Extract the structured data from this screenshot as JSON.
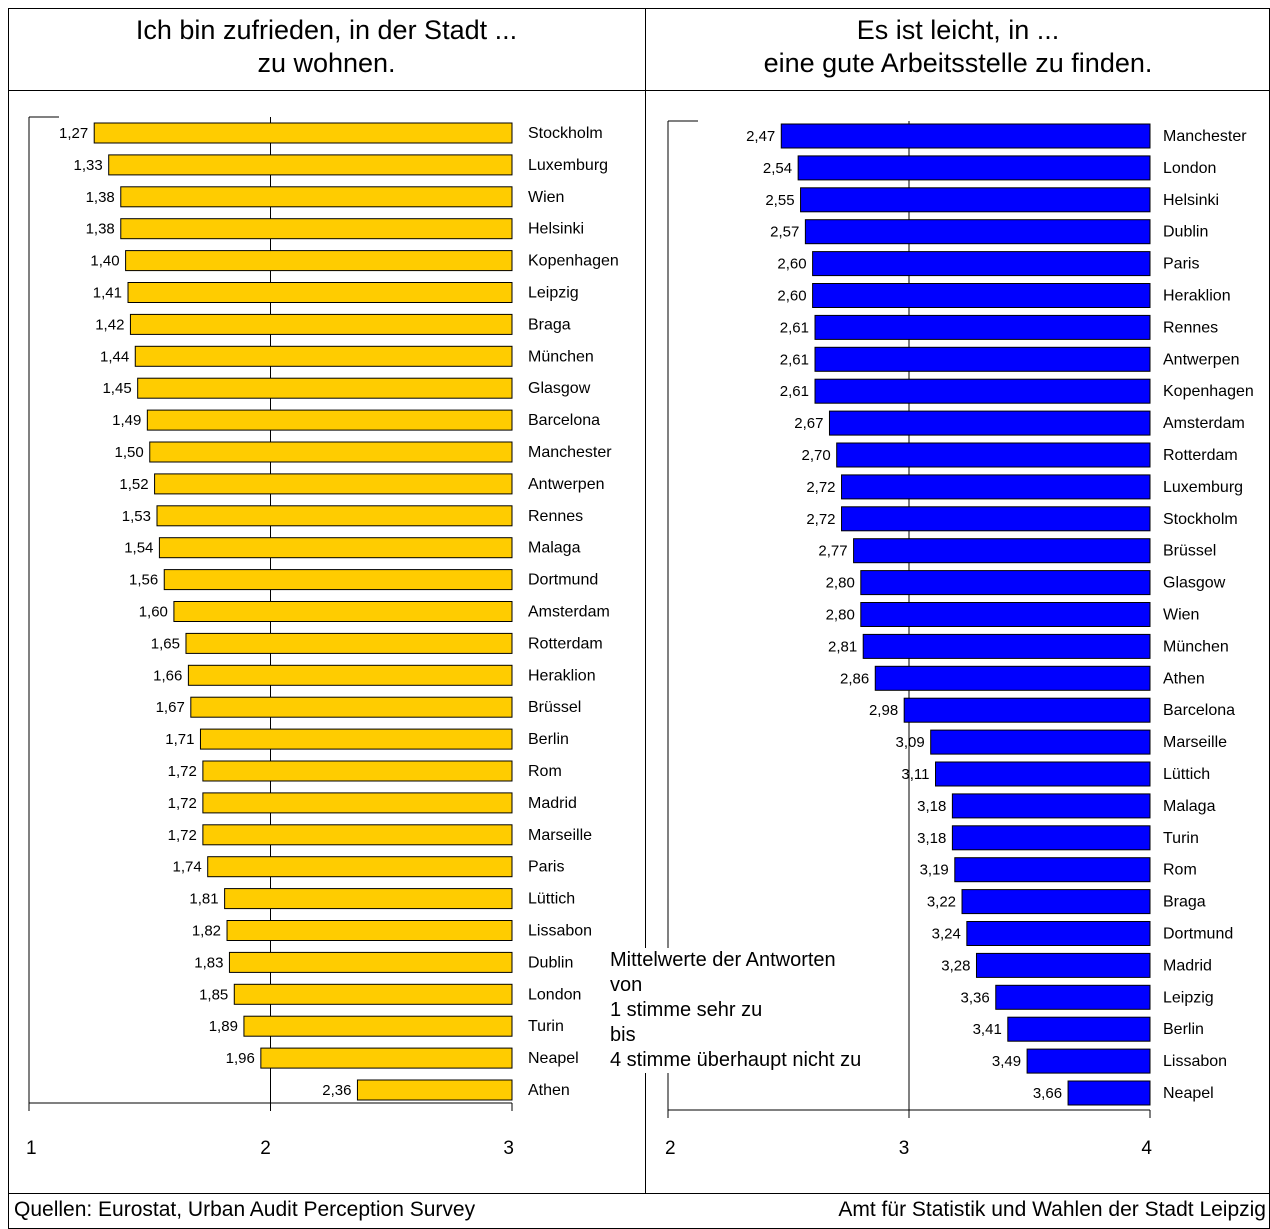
{
  "left_panel": {
    "title_line1": "Ich bin zufrieden, in der Stadt ...",
    "title_line2": "zu wohnen."
  },
  "right_panel": {
    "title_line1": "Es ist leicht, in ...",
    "title_line2": "eine gute Arbeitsstelle zu finden."
  },
  "note": {
    "line1": "Mittelwerte der Antworten",
    "line2": "von",
    "line3": "1 stimme sehr zu",
    "line4": "bis",
    "line5": "4 stimme überhaupt nicht zu"
  },
  "footer": {
    "source": "Quellen: Eurostat, Urban Audit Perception Survey",
    "publisher": "Amt für Statistik und Wahlen der Stadt Leipzig"
  },
  "colors": {
    "left_bar": "#FFCC00",
    "right_bar": "#0000FF"
  },
  "chart_data": [
    {
      "type": "bar",
      "orientation": "horizontal",
      "title": "Ich bin zufrieden, in der Stadt ... zu wohnen.",
      "xlim": [
        1,
        3
      ],
      "xticks": [
        "1",
        "2",
        "3"
      ],
      "grid": true,
      "categories": [
        "Stockholm",
        "Luxemburg",
        "Wien",
        "Helsinki",
        "Kopenhagen",
        "Leipzig",
        "Braga",
        "München",
        "Glasgow",
        "Barcelona",
        "Manchester",
        "Antwerpen",
        "Rennes",
        "Malaga",
        "Dortmund",
        "Amsterdam",
        "Rotterdam",
        "Heraklion",
        "Brüssel",
        "Berlin",
        "Rom",
        "Madrid",
        "Marseille",
        "Paris",
        "Lüttich",
        "Lissabon",
        "Dublin",
        "London",
        "Turin",
        "Neapel",
        "Athen"
      ],
      "values": [
        1.27,
        1.33,
        1.38,
        1.38,
        1.4,
        1.41,
        1.42,
        1.44,
        1.45,
        1.49,
        1.5,
        1.52,
        1.53,
        1.54,
        1.56,
        1.6,
        1.65,
        1.66,
        1.67,
        1.71,
        1.72,
        1.72,
        1.72,
        1.74,
        1.81,
        1.82,
        1.83,
        1.85,
        1.89,
        1.96,
        2.36
      ],
      "value_labels": [
        "1,27",
        "1,33",
        "1,38",
        "1,38",
        "1,40",
        "1,41",
        "1,42",
        "1,44",
        "1,45",
        "1,49",
        "1,50",
        "1,52",
        "1,53",
        "1,54",
        "1,56",
        "1,60",
        "1,65",
        "1,66",
        "1,67",
        "1,71",
        "1,72",
        "1,72",
        "1,72",
        "1,74",
        "1,81",
        "1,82",
        "1,83",
        "1,85",
        "1,89",
        "1,96",
        "2,36"
      ]
    },
    {
      "type": "bar",
      "orientation": "horizontal",
      "title": "Es ist leicht, in ... eine gute Arbeitsstelle zu finden.",
      "xlim": [
        2,
        4
      ],
      "xticks": [
        "2",
        "3",
        "4"
      ],
      "grid": true,
      "categories": [
        "Manchester",
        "London",
        "Helsinki",
        "Dublin",
        "Paris",
        "Heraklion",
        "Rennes",
        "Antwerpen",
        "Kopenhagen",
        "Amsterdam",
        "Rotterdam",
        "Luxemburg",
        "Stockholm",
        "Brüssel",
        "Glasgow",
        "Wien",
        "München",
        "Athen",
        "Barcelona",
        "Marseille",
        "Lüttich",
        "Malaga",
        "Turin",
        "Rom",
        "Braga",
        "Dortmund",
        "Madrid",
        "Leipzig",
        "Berlin",
        "Lissabon",
        "Neapel"
      ],
      "values": [
        2.47,
        2.54,
        2.55,
        2.57,
        2.6,
        2.6,
        2.61,
        2.61,
        2.61,
        2.67,
        2.7,
        2.72,
        2.72,
        2.77,
        2.8,
        2.8,
        2.81,
        2.86,
        2.98,
        3.09,
        3.11,
        3.18,
        3.18,
        3.19,
        3.22,
        3.24,
        3.28,
        3.36,
        3.41,
        3.49,
        3.66
      ],
      "value_labels": [
        "2,47",
        "2,54",
        "2,55",
        "2,57",
        "2,60",
        "2,60",
        "2,61",
        "2,61",
        "2,61",
        "2,67",
        "2,70",
        "2,72",
        "2,72",
        "2,77",
        "2,80",
        "2,80",
        "2,81",
        "2,86",
        "2,98",
        "3,09",
        "3,11",
        "3,18",
        "3,18",
        "3,19",
        "3,22",
        "3,24",
        "3,28",
        "3,36",
        "3,41",
        "3,49",
        "3,66"
      ]
    }
  ]
}
